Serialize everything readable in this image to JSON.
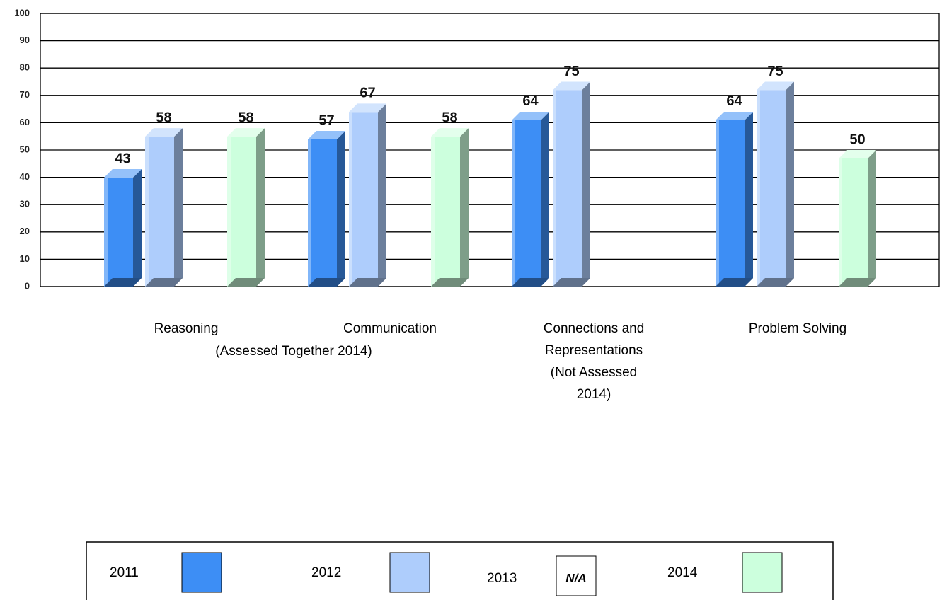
{
  "chart_data": {
    "type": "bar3d",
    "categories": [
      "Reasoning",
      "Communication",
      "Connections and Representations (Not Assessed 2014)",
      "Problem Solving"
    ],
    "annotations": [
      "(Assessed Together 2014)"
    ],
    "series": [
      {
        "name": "2011",
        "color": "#3d8ef5",
        "values": [
          43,
          57,
          64,
          64
        ]
      },
      {
        "name": "2012",
        "color": "#aecdfc",
        "values": [
          58,
          67,
          75,
          75
        ]
      },
      {
        "name": "2013",
        "color": "#ffffff",
        "values": [
          null,
          null,
          null,
          null
        ],
        "legend_label": "N/A"
      },
      {
        "name": "2014",
        "color": "#ccffdd",
        "values": [
          58,
          58,
          null,
          50
        ]
      }
    ],
    "ylim": [
      0,
      100
    ],
    "yticks": [
      0,
      10,
      20,
      30,
      40,
      50,
      60,
      70,
      80,
      90,
      100
    ],
    "grid": true,
    "legend": "bottom"
  }
}
